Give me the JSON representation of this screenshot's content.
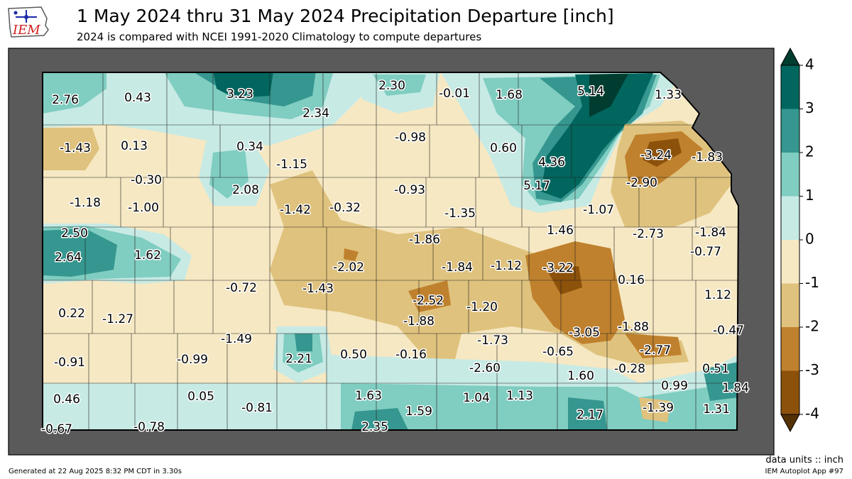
{
  "header": {
    "title": "1 May 2024 thru 31 May 2024 Precipitation Departure [inch]",
    "subtitle": "2024 is compared with NCEI 1991-2020 Climatology to compute departures",
    "logo_text": "IEM"
  },
  "footer": {
    "units_note": "data units :: inch",
    "generated": "Generated at 22 Aug 2025 8:32 PM CDT in 3.30s",
    "app_id": "IEM Autoplot App #97"
  },
  "colorbar": {
    "ticks": [
      "4",
      "3",
      "2",
      "1",
      "0",
      "-1",
      "-2",
      "-3",
      "-4"
    ],
    "colors": [
      "#01665e",
      "#35978f",
      "#80cdc1",
      "#c7eae5",
      "#f6e8c3",
      "#dfc27d",
      "#bf812d",
      "#8c510a"
    ],
    "over_color": "#003c30",
    "under_color": "#543005"
  },
  "map": {
    "background_color": "#5a5a5a",
    "state_fill": "#f6e8c3",
    "station_values": [
      "2.76",
      "0.43",
      "3.23",
      "2.34",
      "2.30",
      "-0.01",
      "1.68",
      "5.14",
      "1.33",
      "-1.43",
      "0.13",
      "0.34",
      "-1.15",
      "-0.98",
      "0.60",
      "4.36",
      "-3.24",
      "-1.83",
      "-0.30",
      "2.08",
      "-0.93",
      "5.17",
      "-2.90",
      "-1.18",
      "-1.00",
      "-1.42",
      "-0.32",
      "-1.35",
      "-1.07",
      "2.50",
      "1.46",
      "-2.73",
      "-1.84",
      "-1.86",
      "-0.77",
      "2.64",
      "1.62",
      "-2.02",
      "-1.84",
      "-1.12",
      "-3.22",
      "-0.72",
      "-1.43",
      "0.16",
      "1.12",
      "-2.52",
      "-1.20",
      "0.22",
      "-1.27",
      "-1.88",
      "-1.88",
      "-3.05",
      "-0.47",
      "-1.49",
      "-1.73",
      "-2.77",
      "-0.99",
      "2.21",
      "0.50",
      "-0.16",
      "-0.65",
      "-0.91",
      "-2.60",
      "-0.28",
      "0.51",
      "1.60",
      "0.99",
      "1.84",
      "0.46",
      "0.05",
      "-0.81",
      "1.63",
      "1.04",
      "1.13",
      "-1.39",
      "1.59",
      "1.31",
      "2.17",
      "-0.67",
      "-0.78",
      "2.35"
    ]
  }
}
